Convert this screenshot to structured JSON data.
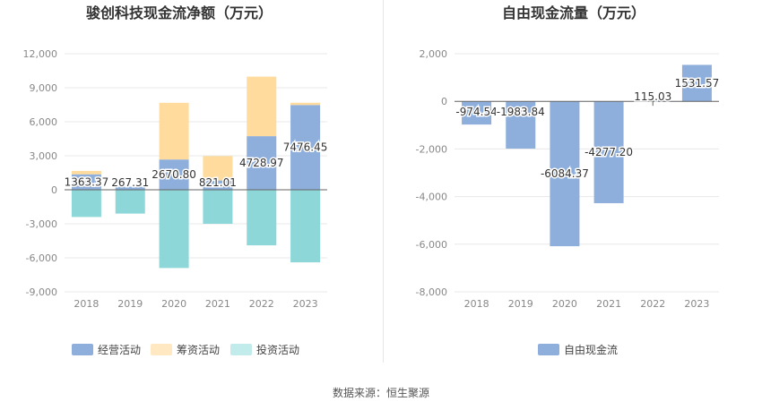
{
  "source_text": "数据来源：恒生聚源",
  "chart_data": [
    {
      "type": "bar",
      "stacked": true,
      "title": "骏创科技现金流净额（万元）",
      "categories": [
        "2018",
        "2019",
        "2020",
        "2021",
        "2022",
        "2023"
      ],
      "series": [
        {
          "name": "经营活动",
          "color": "#8eaedc",
          "values": [
            1363.37,
            267.31,
            2670.8,
            821.01,
            4728.97,
            7476.45
          ]
        },
        {
          "name": "筹资活动",
          "color": "#ffdb9e",
          "values": [
            300,
            0,
            5000,
            2150,
            5250,
            200
          ]
        },
        {
          "name": "投资活动",
          "color": "#8dd7d8",
          "values": [
            -2400,
            -2100,
            -6900,
            -3000,
            -4900,
            -6400
          ]
        }
      ],
      "data_labels": [
        "1363.37",
        "267.31",
        "2670.80",
        "821.01",
        "4728.97",
        "7476.45"
      ],
      "y_ticks": [
        -9000,
        -6000,
        -3000,
        0,
        3000,
        6000,
        9000,
        12000
      ],
      "y_tick_labels": [
        "-9,000",
        "-6,000",
        "-3,000",
        "0",
        "3,000",
        "6,000",
        "9,000",
        "12,000"
      ],
      "ylim": [
        -9000,
        12000
      ],
      "legend_position": "bottom",
      "legend_swatch_colors": [
        "#8eaedc",
        "#ffe8c2",
        "#c2ecec"
      ]
    },
    {
      "type": "bar",
      "title": "自由现金流量（万元）",
      "categories": [
        "2018",
        "2019",
        "2020",
        "2021",
        "2022",
        "2023"
      ],
      "series": [
        {
          "name": "自由现金流",
          "color": "#8eaedc",
          "values": [
            -974.54,
            -1983.84,
            -6084.37,
            -4277.2,
            115.03,
            1531.57
          ]
        }
      ],
      "data_labels": [
        "-974.54",
        "-1983.84",
        "-6084.37",
        "-4277.20",
        "115.03",
        "1531.57"
      ],
      "y_ticks": [
        -8000,
        -6000,
        -4000,
        -2000,
        0,
        2000
      ],
      "y_tick_labels": [
        "-8,000",
        "-6,000",
        "-4,000",
        "-2,000",
        "0",
        "2,000"
      ],
      "ylim": [
        -8000,
        2000
      ],
      "legend_position": "bottom",
      "legend_swatch_colors": [
        "#8eaedc"
      ]
    }
  ]
}
